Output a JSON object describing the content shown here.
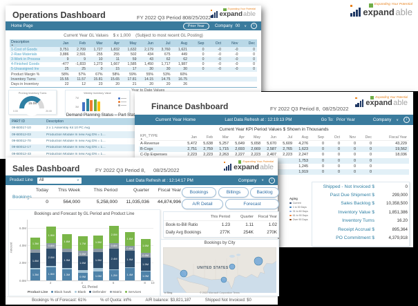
{
  "brand": {
    "tagline": "Expanding Your Potential",
    "name_bold": "expand",
    "name_light": "able",
    "bar_color": "#1f3864",
    "orange": "#e8821e",
    "green": "#70ad47"
  },
  "operations": {
    "window_title": "Operations Dashboard",
    "period_label": "FY 2022 Q3 Period 8",
    "date_label": "08/25/2022",
    "nav": {
      "home": "Home Page",
      "prior_year": "Prior Year",
      "company_label": "Company",
      "company_value": "00"
    },
    "caption": {
      "title": "Current Year GL Values",
      "scale": "$ x 1,000",
      "note": "(Subject to most recent GL Posting)"
    },
    "gl_table": {
      "desc_header": "Description",
      "months": [
        "Jan",
        "Feb",
        "Mar",
        "Apr",
        "May",
        "Jun",
        "Jul",
        "Aug",
        "Sep",
        "Oct",
        "Nov",
        "Dec"
      ],
      "rows": [
        {
          "label": "1-Cost of Goods",
          "link": true,
          "values": [
            "3,751",
            "2,709",
            "1,727",
            "1,832",
            "1,632",
            "2,179",
            "3,760",
            "1,621",
            "0",
            "-0",
            "-0",
            "0"
          ]
        },
        {
          "label": "2-Raw Materials",
          "link": true,
          "values": [
            "3,886",
            "2,591",
            "255",
            "255",
            "502",
            "434",
            "675",
            "449",
            "0",
            "-0",
            "-0",
            "0"
          ]
        },
        {
          "label": "3-Work in Process",
          "link": true,
          "values": [
            "9",
            "9",
            "10",
            "11",
            "59",
            "43",
            "62",
            "62",
            "0",
            "-0",
            "-0",
            "0"
          ]
        },
        {
          "label": "4-Finished Goods",
          "link": true,
          "values": [
            "-477",
            "-1,833",
            "1,273",
            "1,667",
            "1,585",
            "1,450",
            "1,717",
            "1,987",
            "0",
            "-0",
            "-0",
            "0"
          ]
        },
        {
          "label": "5-Unassigned Inv",
          "link": true,
          "values": [
            "25",
            "25",
            "0",
            "15",
            "17",
            "30",
            "30",
            "30",
            "0",
            "-0",
            "-0",
            "0"
          ]
        },
        {
          "label": "Product Margin %",
          "link": false,
          "values": [
            "58%",
            "57%",
            "67%",
            "58%",
            "59%",
            "55%",
            "53%",
            "60%",
            "",
            "",
            "",
            ""
          ]
        },
        {
          "label": "Inventory Turns",
          "link": false,
          "values": [
            "15.55",
            "11.57",
            "15.81",
            "15.65",
            "17.81",
            "14.15",
            "14.75",
            "16.75",
            "",
            "",
            "",
            ""
          ]
        },
        {
          "label": "Days in Inventory",
          "link": false,
          "values": [
            "22",
            "12",
            "23",
            "20",
            "21",
            "20",
            "20",
            "26",
            "",
            "",
            "",
            ""
          ]
        }
      ]
    },
    "gauge": {
      "title": "Prd Avg Inventory Turns",
      "value": "15.08",
      "min": "0.00",
      "max": "20.00"
    },
    "weekly": {
      "title": "Weekly Inventory Value"
    },
    "ytd_label": "Year to Date Values",
    "demand": {
      "title": "Demand Planning Status – Part Status PO",
      "headers": [
        "PART ID",
        "Description",
        "On Hand",
        "PO Due",
        "Job Due"
      ],
      "rows": [
        [
          "09-B0017-10",
          "2 x 1 Assembly Kit 10 PC Avg",
          "1,743",
          "",
          ""
        ],
        [
          "09-B0012-03",
          "Production Module In new Avg DN = 1…",
          "1,967",
          "2,400",
          ""
        ],
        [
          "09-B0012-70",
          "Production Module In new Avg DN = 1…",
          "1,967",
          "2,398",
          ""
        ],
        [
          "09-B0012-17",
          "Production Module In new Avg DN = 1…",
          "1,371",
          "",
          ""
        ],
        [
          "09-B0012-43",
          "Production Module In new Avg DN = 1…",
          "1,204",
          "1,600",
          ""
        ]
      ]
    }
  },
  "finance": {
    "window_title": "Finance Dashboard",
    "period_label": "FY 2022 Q3 Period 8,",
    "date_label": "08/25/2022",
    "nav": {
      "home": "Current Year Home",
      "refresh": "Last Data Refresh at : 12:19:13 PM",
      "goto_label": "Go To:",
      "prior_year": "Prior Year",
      "company_label": "Company"
    },
    "caption": "Current Year KPI Period Values $ Shown in Thousands",
    "kpi_table": {
      "type_header": "KPI_TYPE",
      "months": [
        "Jan",
        "Feb",
        "Mar",
        "Apr",
        "May",
        "Jun",
        "Jul",
        "Aug",
        "Sep",
        "Oct",
        "Nov",
        "Dec"
      ],
      "fiscal_header": "Fiscal Year",
      "rows": [
        {
          "label": "A-Revenue",
          "values": [
            "5,472",
            "5,638",
            "5,257",
            "5,649",
            "5,658",
            "5,670",
            "5,609",
            "4,276",
            "0",
            "0",
            "0",
            "0"
          ],
          "fiscal": "43,229"
        },
        {
          "label": "B-Cogs",
          "values": [
            "2,751",
            "2,759",
            "1,715",
            "2,693",
            "2,669",
            "2,587",
            "2,765",
            "1,623",
            "0",
            "0",
            "0",
            "0"
          ],
          "fiscal": "19,562"
        },
        {
          "label": "C-Op Expenses",
          "values": [
            "2,223",
            "2,223",
            "2,263",
            "2,227",
            "2,223",
            "2,407",
            "2,223",
            "2,247",
            "0",
            "0",
            "0",
            "0"
          ],
          "fiscal": "18,036"
        },
        {
          "label": "",
          "values": [
            "",
            "",
            "",
            "",
            "",
            "",
            "",
            "1,753",
            "0",
            "0",
            "0",
            "0"
          ],
          "fiscal": ""
        },
        {
          "label": "",
          "values": [
            "",
            "",
            "",
            "",
            "",
            "",
            "",
            "1,245",
            "0",
            "0",
            "0",
            "0"
          ],
          "fiscal": ""
        },
        {
          "label": "",
          "values": [
            "",
            "",
            "",
            "",
            "",
            "",
            "",
            "1,919",
            "0",
            "0",
            "0",
            "0"
          ],
          "fiscal": ""
        }
      ]
    },
    "aging_legend": {
      "title": "Aging",
      "items": [
        {
          "label": "Current",
          "color": "#1f3864"
        },
        {
          "label": "1 to 30 Days",
          "color": "#2e75b6"
        },
        {
          "label": "31 to 60 Days",
          "color": "#8eaadb"
        },
        {
          "label": "61 to 90 Days",
          "color": "#ed7d31"
        },
        {
          "label": "Over 90 Days",
          "color": "#843c0c"
        }
      ]
    },
    "kpi_panel": [
      {
        "label": "Shipped - Not Invoiced $",
        "value": "0"
      },
      {
        "label": "Past Due Shipment $",
        "value": "299,000"
      },
      {
        "label": "Sales Backlog $",
        "value": "10,358,500"
      },
      {
        "label": "Inventory Value $",
        "value": "1,851,386"
      },
      {
        "label": "Inventory Turns",
        "value": "16.20"
      },
      {
        "label": "Receipt Accrual $",
        "value": "895,364"
      },
      {
        "label": "PO Commitment $",
        "value": "4,379,918"
      }
    ]
  },
  "sales": {
    "window_title": "Sales Dashboard",
    "period_label": "FY 2022 Q3 Period 8,",
    "date_label": "08/25/2022",
    "nav": {
      "product_line_label": "Product Line",
      "product_line_value": "All",
      "refresh": "Last Data Refresh at : 12:14:17 PM",
      "company_label": "Company"
    },
    "kpi": {
      "headers": [
        "Today",
        "This Week",
        "This Period",
        "Quarter",
        "Fiscal Year"
      ],
      "row_label": "Bookings",
      "values": [
        "0",
        "564,000",
        "5,258,000",
        "11,035,036",
        "44,874,996"
      ]
    },
    "buttons": [
      "Bookings",
      "Billings",
      "Backlog",
      "A/R Detail",
      "Forecast"
    ],
    "ratio": {
      "col_headers": [
        "This Period",
        "Quarter",
        "Fiscal Year"
      ],
      "rows": [
        {
          "label": "Book-to-Bill Ratio",
          "values": [
            "1.23",
            "1.11",
            "1.02"
          ]
        },
        {
          "label": "Daily Avg Bookings",
          "values": [
            "277K",
            "254K",
            "270K"
          ]
        }
      ]
    },
    "map": {
      "title": "Bookings by City",
      "country_label": "UNITED STATES",
      "bing_label": "b Bing",
      "attribution": "© 2022 Microsoft Corporation   Terms"
    },
    "footer": [
      "Bookings % of Forecast: 61%",
      "% of Quota: inf%",
      "A/R balance: $3,821,187",
      "Shipped Not Invoiced: $0"
    ]
  },
  "chart_data": [
    {
      "type": "bar",
      "stacked": true,
      "title": "Bookings and Forecast by GL Period and Product Line",
      "xlabel": "GL Period",
      "ylabel": "Amount",
      "legend_title": "Product Line",
      "legend_position": "bottom",
      "categories": [
        1,
        2,
        3,
        4,
        5,
        6,
        7,
        8
      ],
      "x_ticks": [
        "2",
        "4",
        "6",
        "8",
        "10"
      ],
      "ylim": [
        0,
        7
      ],
      "y_ticks": [
        "0.0M",
        "2.0M",
        "4.0M",
        "6.0M"
      ],
      "unit": "M",
      "series": [
        {
          "name": "Black hawk",
          "color": "#4e82a8",
          "values": [
            1.3,
            1.5,
            1.3,
            0.9,
            1.0,
            1.2,
            1.4,
            1.0
          ]
        },
        {
          "name": "Blank",
          "color": "#a9c7d9",
          "values": [
            0.1,
            0.2,
            0.1,
            0.3,
            0.4,
            0.1,
            0.1,
            0.1
          ]
        },
        {
          "name": "Defender",
          "color": "#2e4d6b",
          "values": [
            1.8,
            2.0,
            1.9,
            1.6,
            1.9,
            2.4,
            1.9,
            1.5
          ]
        },
        {
          "name": "Matrix",
          "color": "#8e9aa5",
          "values": [
            0.4,
            0.6,
            0.4,
            0.6,
            0.4,
            0.6,
            0.6,
            0.6
          ]
        },
        {
          "name": "Services",
          "color": "#7ab648",
          "values": [
            1.3,
            1.9,
            1.6,
            1.7,
            1.5,
            2.0,
            1.6,
            1.6
          ]
        }
      ]
    },
    {
      "type": "gauge",
      "title": "Prd Avg Inventory Turns",
      "value": 15.08,
      "min": 0,
      "max": 20
    },
    {
      "type": "bar",
      "title": "Weekly Inventory Value",
      "values": [
        5,
        7,
        6,
        6.5,
        5.5
      ],
      "colors": [
        "#4472c4",
        "#31859c",
        "#ed7d31",
        "#70ad47",
        "#ffc000"
      ]
    },
    {
      "type": "map",
      "title": "Bookings by City",
      "points": [
        {
          "x": 30,
          "y": 38,
          "r": 5
        },
        {
          "x": 88,
          "y": 47,
          "r": 4
        },
        {
          "x": 100,
          "y": 28,
          "r": 4
        },
        {
          "x": 138,
          "y": 20,
          "r": 6
        }
      ]
    }
  ]
}
